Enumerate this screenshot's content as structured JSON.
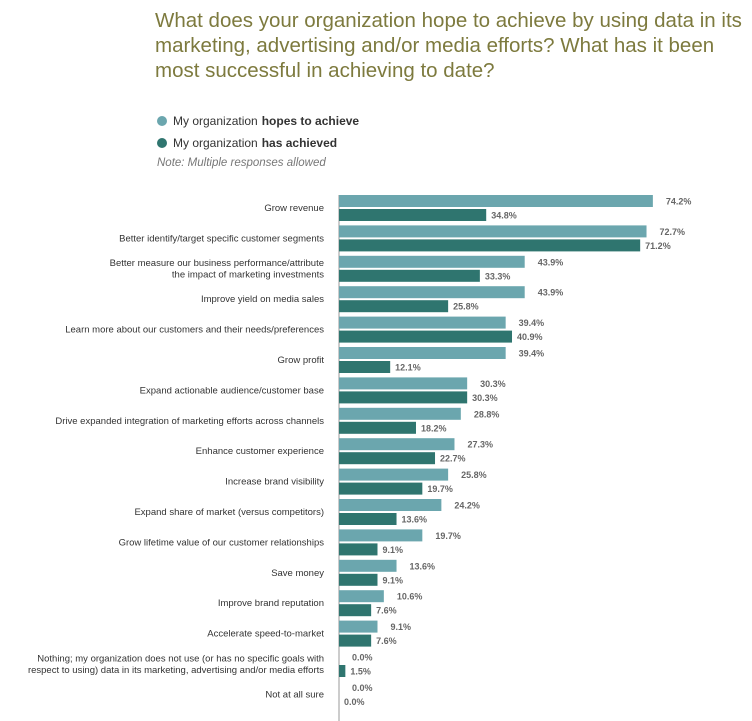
{
  "chart_data": {
    "type": "bar",
    "orientation": "horizontal",
    "title": "What does your organization hope to achieve by using data in its marketing, advertising and/or media efforts? What has it been most successful in achieving to date?",
    "note": "Note: Multiple responses allowed",
    "legend": [
      {
        "prefix": "My organization ",
        "bold": "hopes to achieve"
      },
      {
        "prefix": "My organization ",
        "bold": "has achieved"
      }
    ],
    "colors": {
      "hopes": "#6ba6ae",
      "achieved": "#2f756f"
    },
    "xlim": [
      0,
      80
    ],
    "categories": [
      [
        "Grow revenue"
      ],
      [
        "Better identify/target specific customer segments"
      ],
      [
        "Better measure our business performance/attribute",
        "the impact of marketing investments"
      ],
      [
        "Improve yield on media sales"
      ],
      [
        "Learn more about our customers and their needs/preferences"
      ],
      [
        "Grow profit"
      ],
      [
        "Expand actionable audience/customer base"
      ],
      [
        "Drive expanded integration of marketing efforts across channels"
      ],
      [
        "Enhance customer experience"
      ],
      [
        "Increase brand visibility"
      ],
      [
        "Expand share of market (versus competitors)"
      ],
      [
        "Grow lifetime value of our customer relationships"
      ],
      [
        "Save money"
      ],
      [
        "Improve brand reputation"
      ],
      [
        "Accelerate speed-to-market"
      ],
      [
        "Nothing; my organization does not use (or has no specific goals with",
        "respect to using) data in its marketing, advertising and/or media efforts"
      ],
      [
        "Not at all sure"
      ]
    ],
    "series": [
      {
        "name": "My organization hopes to achieve",
        "values": [
          74.2,
          72.7,
          43.9,
          43.9,
          39.4,
          39.4,
          30.3,
          28.8,
          27.3,
          25.8,
          24.2,
          19.7,
          13.6,
          10.6,
          9.1,
          0.0,
          0.0
        ],
        "labels": [
          "74.2%",
          "72.7%",
          "43.9%",
          "43.9%",
          "39.4%",
          "39.4%",
          "30.3%",
          "28.8%",
          "27.3%",
          "25.8%",
          "24.2%",
          "19.7%",
          "13.6%",
          "10.6%",
          "9.1%",
          "0.0%",
          "0.0%"
        ]
      },
      {
        "name": "My organization has achieved",
        "values": [
          34.8,
          71.2,
          33.3,
          25.8,
          40.9,
          12.1,
          30.3,
          18.2,
          22.7,
          19.7,
          13.6,
          9.1,
          9.1,
          7.6,
          7.6,
          1.5,
          0.0
        ],
        "labels": [
          "34.8%",
          "71.2%",
          "33.3%",
          "25.8%",
          "40.9%",
          "12.1%",
          "30.3%",
          "18.2%",
          "22.7%",
          "19.7%",
          "13.6%",
          "9.1%",
          "9.1%",
          "7.6%",
          "7.6%",
          "1.5%",
          "0.0%"
        ]
      }
    ]
  }
}
